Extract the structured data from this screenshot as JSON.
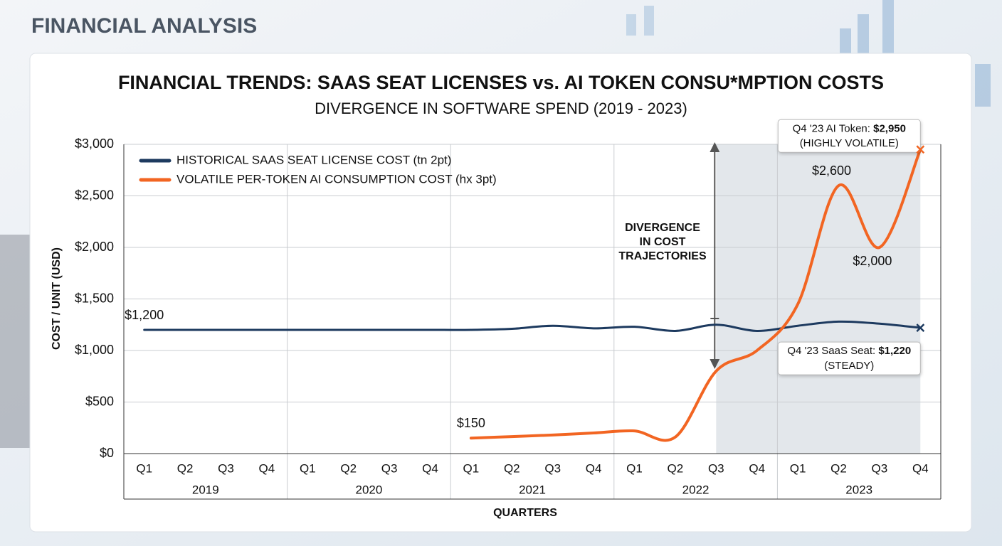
{
  "header": "FINANCIAL ANALYSIS",
  "chart_data": {
    "type": "line",
    "title": "FINANCIAL TRENDS: SAAS SEAT LICENSES vs. AI TOKEN CONSU*MPTION COSTS",
    "subtitle": "DIVERGENCE IN SOFTWARE SPEND (2019 - 2023)",
    "y_label": "COST / UNIT (USD)",
    "x_label": "QUARTERS",
    "categories": [
      "Q1",
      "Q2",
      "Q3",
      "Q4",
      "Q1",
      "Q2",
      "Q3",
      "Q4",
      "Q1",
      "Q2",
      "Q3",
      "Q4",
      "Q1",
      "Q2",
      "Q3",
      "Q4",
      "Q1",
      "Q2",
      "Q3",
      "Q4"
    ],
    "category_groups": [
      "2019",
      "2020",
      "2021",
      "2022",
      "2023"
    ],
    "ylim": [
      0,
      3000
    ],
    "yticks": [
      {
        "value": 0,
        "label": "$0"
      },
      {
        "value": 500,
        "label": "$500"
      },
      {
        "value": 1000,
        "label": "$1,000"
      },
      {
        "value": 1500,
        "label": "$1,500"
      },
      {
        "value": 2000,
        "label": "$2,000"
      },
      {
        "value": 2500,
        "label": "$2,500"
      },
      {
        "value": 3000,
        "label": "$3,000"
      }
    ],
    "grid": true,
    "legend": "upper left",
    "shade": [
      14,
      19
    ],
    "annotation": [
      "DIVERGENCE",
      "IN COST",
      "TRAJECTORIES"
    ],
    "series": [
      {
        "name": "HISTORICAL SAAS SEAT LICENSE COST (tn 2pt)",
        "color": "#1d3a5f",
        "width": 3,
        "values": [
          1200,
          1200,
          1200,
          1200,
          1200,
          1200,
          1200,
          1200,
          1200,
          1210,
          1240,
          1215,
          1230,
          1190,
          1250,
          1190,
          1240,
          1280,
          1260,
          1220
        ],
        "value_labels": [
          "$1,200",
          null,
          null,
          null,
          null,
          null,
          null,
          null,
          null,
          null,
          null,
          null,
          null,
          null,
          null,
          null,
          null,
          null,
          null,
          "$1,220"
        ],
        "callout": {
          "label": "Q4 '23 SaaS Seat:",
          "note": "(STEADY)"
        }
      },
      {
        "name": "VOLATILE PER-TOKEN AI CONSUMPTION COST (hx 3pt)",
        "color": "#f26522",
        "width": 4,
        "values": [
          null,
          null,
          null,
          null,
          null,
          null,
          null,
          null,
          150,
          165,
          180,
          200,
          220,
          160,
          800,
          1000,
          1450,
          2600,
          2000,
          2950
        ],
        "value_labels": [
          null,
          null,
          null,
          null,
          null,
          null,
          null,
          null,
          "$150",
          null,
          null,
          null,
          null,
          null,
          null,
          null,
          null,
          "$2,600",
          "$2,000",
          "$2,950"
        ],
        "callout": {
          "label": "Q4 '23 AI Token:",
          "note": "(HIGHLY VOLATILE)"
        }
      }
    ]
  }
}
